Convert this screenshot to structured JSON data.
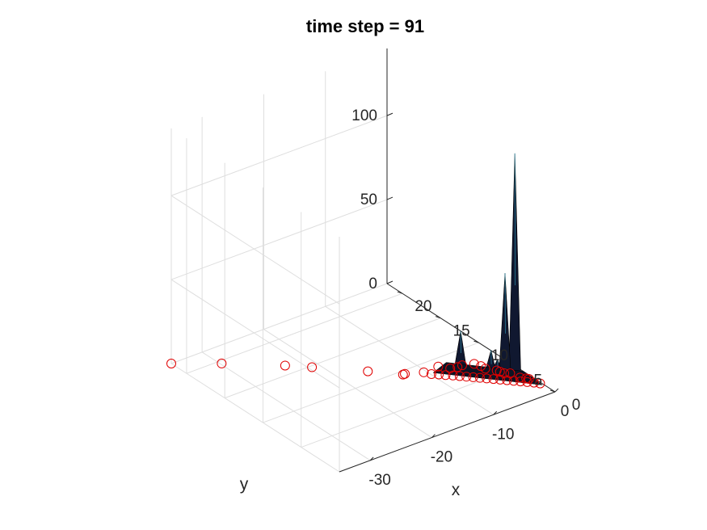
{
  "chart_data": {
    "type": "scatter",
    "title": "time step = 91",
    "xlabel": "x",
    "ylabel": "y",
    "zlabel": "",
    "xlim": [
      -35,
      0
    ],
    "ylim": [
      0,
      22
    ],
    "zlim": [
      0,
      140
    ],
    "xticks": [
      -30,
      -20,
      -10,
      0
    ],
    "yticks": [
      0,
      5,
      10,
      15,
      20
    ],
    "zticks": [
      0,
      50,
      100
    ],
    "xtick_labels": [
      "-30",
      "-20",
      "-10",
      "0"
    ],
    "ytick_labels": [
      "0",
      "5",
      "10",
      "15",
      "20"
    ],
    "ztick_labels": [
      "0",
      "50",
      "100"
    ],
    "grid": true,
    "view": "3d",
    "marker_color": "#e00000",
    "surface_color": "#101830",
    "series": [
      {
        "type": "scatter",
        "marker": "circle",
        "x": [
          -35,
          -29.8,
          -23.6,
          -21.1,
          -16.0,
          -12.9,
          -12.6,
          -10.4,
          -9.9,
          -9.2,
          -8.6,
          -7.9,
          -7.3,
          -6.7,
          -6.1,
          -5.5,
          -4.9,
          -4.3,
          -3.7,
          -3.1,
          -2.5,
          -1.9,
          -1.3,
          -0.7,
          -0.2,
          -8.8,
          -6.4,
          -4.0,
          -3.4,
          -2.2,
          -5.2,
          -1.6,
          -2.8,
          -0.9,
          -7.6,
          -6.9,
          -4.6,
          -1.1,
          -3.0
        ],
        "y": [
          22,
          19.6,
          16.3,
          14.8,
          11.6,
          9.5,
          9.5,
          8.8,
          8.2,
          7.8,
          7.4,
          7.0,
          6.6,
          6.2,
          5.8,
          5.4,
          5.0,
          4.6,
          4.2,
          3.8,
          3.4,
          3.0,
          2.6,
          2.2,
          1.8,
          8.2,
          7.0,
          5.9,
          4.9,
          4.1,
          6.4,
          3.3,
          4.4,
          2.7,
          7.6,
          7.2,
          6.0,
          2.9,
          4.8
        ],
        "z": [
          0,
          0,
          0,
          0,
          0,
          0,
          0,
          0,
          0,
          0,
          0,
          0,
          0,
          0,
          0,
          0,
          0,
          0,
          0,
          0,
          0,
          0,
          0,
          0,
          0,
          3,
          4,
          2,
          3,
          2,
          5,
          1,
          2,
          1,
          2,
          3,
          4,
          1,
          2
        ]
      },
      {
        "type": "surface",
        "peaks": [
          {
            "x": -1.2,
            "y": 4.3,
            "z": 131
          },
          {
            "x": -2.3,
            "y": 4.7,
            "z": 60
          },
          {
            "x": -3.7,
            "y": 5.4,
            "z": 14
          },
          {
            "x": -5.9,
            "y": 7.6,
            "z": 22
          },
          {
            "x": -2.9,
            "y": 5.2,
            "z": 8
          }
        ]
      }
    ]
  }
}
